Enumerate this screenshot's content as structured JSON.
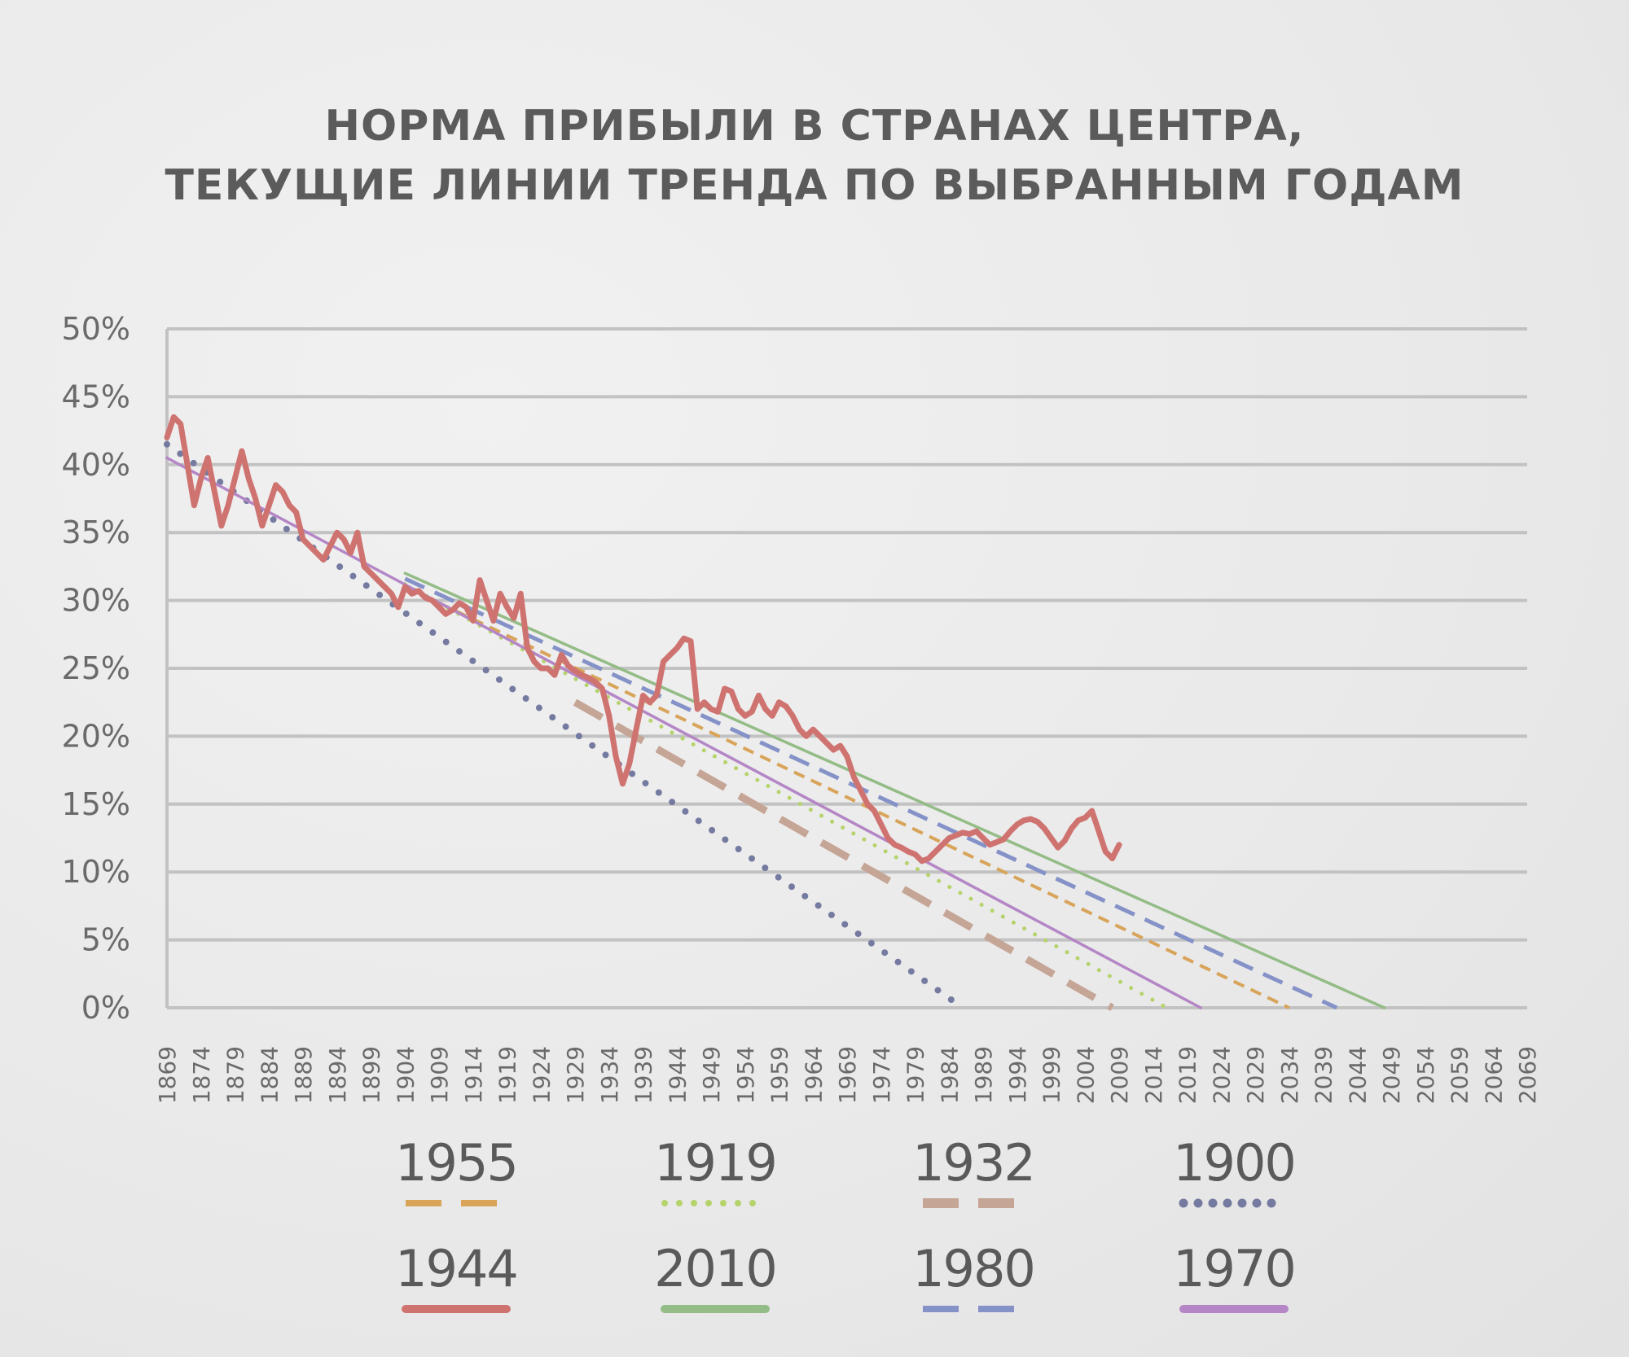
{
  "title": {
    "line1": "НОРМА ПРИБЫЛИ В СТРАНАХ ЦЕНТРА,",
    "line2": "ТЕКУЩИЕ ЛИНИИ ТРЕНДА ПО ВЫБРАННЫМ ГОДАМ"
  },
  "chart_data": {
    "type": "line",
    "title": "НОРМА ПРИБЫЛИ В СТРАНАХ ЦЕНТРА, ТЕКУЩИЕ ЛИНИИ ТРЕНДА ПО ВЫБРАННЫМ ГОДАМ",
    "xlabel": "",
    "ylabel": "",
    "xlim": [
      1869,
      2069
    ],
    "ylim": [
      0,
      50
    ],
    "grid": true,
    "legend_position": "bottom",
    "x_ticks": [
      1869,
      1874,
      1879,
      1884,
      1889,
      1894,
      1899,
      1904,
      1909,
      1914,
      1919,
      1924,
      1929,
      1934,
      1939,
      1944,
      1949,
      1954,
      1959,
      1964,
      1969,
      1974,
      1979,
      1984,
      1989,
      1994,
      1999,
      2004,
      2009,
      2014,
      2019,
      2024,
      2029,
      2034,
      2039,
      2044,
      2049,
      2054,
      2059,
      2064,
      2069
    ],
    "x_tick_labels": [
      "1869",
      "1874",
      "1879",
      "1884",
      "1889",
      "1894",
      "1899",
      "1904",
      "1909",
      "1914",
      "1919",
      "1924",
      "1929",
      "1934",
      "1939",
      "1944",
      "1949",
      "1954",
      "1959",
      "1964",
      "1969",
      "1974",
      "1979",
      "1984",
      "1989",
      "1994",
      "1999",
      "2004",
      "2009",
      "2014",
      "2019",
      "2024",
      "2029",
      "2034",
      "2039",
      "2044",
      "2049",
      "2054",
      "2059",
      "2064",
      "2069"
    ],
    "y_ticks": [
      0,
      5,
      10,
      15,
      20,
      25,
      30,
      35,
      40,
      45,
      50
    ],
    "y_tick_labels": [
      "0%",
      "5%",
      "10%",
      "15%",
      "20%",
      "25%",
      "30%",
      "35%",
      "40%",
      "45%",
      "50%"
    ],
    "series": [
      {
        "name": "1944",
        "color": "#cf7370",
        "style": "solid-thick",
        "x": [
          1869,
          1870,
          1871,
          1872,
          1873,
          1874,
          1875,
          1876,
          1877,
          1878,
          1879,
          1880,
          1881,
          1882,
          1883,
          1884,
          1885,
          1886,
          1887,
          1888,
          1889,
          1890,
          1891,
          1892,
          1893,
          1894,
          1895,
          1896,
          1897,
          1898,
          1899,
          1900,
          1901,
          1902,
          1903,
          1904,
          1905,
          1906,
          1907,
          1908,
          1909,
          1910,
          1911,
          1912,
          1913,
          1914,
          1915,
          1916,
          1917,
          1918,
          1919,
          1920,
          1921,
          1922,
          1923,
          1924,
          1925,
          1926,
          1927,
          1928,
          1929,
          1930,
          1931,
          1932,
          1933,
          1934,
          1935,
          1936,
          1937,
          1938,
          1939,
          1940,
          1941,
          1942,
          1943,
          1944,
          1945,
          1946,
          1947,
          1948,
          1949,
          1950,
          1951,
          1952,
          1953,
          1954,
          1955,
          1956,
          1957,
          1958,
          1959,
          1960,
          1961,
          1962,
          1963,
          1964,
          1965,
          1966,
          1967,
          1968,
          1969,
          1970,
          1971,
          1972,
          1973,
          1974,
          1975,
          1976,
          1977,
          1978,
          1979,
          1980,
          1981,
          1982,
          1983,
          1984,
          1985,
          1986,
          1987,
          1988,
          1989,
          1990,
          1991,
          1992,
          1993,
          1994,
          1995,
          1996,
          1997,
          1998,
          1999,
          2000,
          2001,
          2002,
          2003,
          2004,
          2005,
          2006,
          2007,
          2008,
          2009
        ],
        "values": [
          42.0,
          43.5,
          43.0,
          40.0,
          37.0,
          39.0,
          40.5,
          38.0,
          35.5,
          37.0,
          39.0,
          41.0,
          39.0,
          37.5,
          35.5,
          37.0,
          38.5,
          38.0,
          37.0,
          36.5,
          34.5,
          34.0,
          33.5,
          33.0,
          34.0,
          35.0,
          34.5,
          33.5,
          35.0,
          32.5,
          32.0,
          31.5,
          31.0,
          30.5,
          29.5,
          31.0,
          30.5,
          30.7,
          30.2,
          30.0,
          29.5,
          29.0,
          29.3,
          29.8,
          29.5,
          28.5,
          31.5,
          30.0,
          28.5,
          30.5,
          29.5,
          28.7,
          30.5,
          26.5,
          25.5,
          25.0,
          25.0,
          24.5,
          26.0,
          25.2,
          24.8,
          24.5,
          24.3,
          24.0,
          23.5,
          21.5,
          18.5,
          16.5,
          18.0,
          20.5,
          23.0,
          22.5,
          23.0,
          25.5,
          26.0,
          26.5,
          27.2,
          27.0,
          22.0,
          22.5,
          22.0,
          21.8,
          23.5,
          23.3,
          22.0,
          21.5,
          21.8,
          23.0,
          22.0,
          21.5,
          22.5,
          22.2,
          21.5,
          20.5,
          20.0,
          20.5,
          20.0,
          19.5,
          19.0,
          19.3,
          18.5,
          17.0,
          16.0,
          15.0,
          14.5,
          13.5,
          12.5,
          12.0,
          11.8,
          11.5,
          11.3,
          10.8,
          11.0,
          11.5,
          12.0,
          12.5,
          12.7,
          12.9,
          12.8,
          13.0,
          12.5,
          12.0,
          12.2,
          12.4,
          13.0,
          13.5,
          13.8,
          13.9,
          13.7,
          13.2,
          12.5,
          11.8,
          12.3,
          13.2,
          13.8,
          14.0,
          14.5,
          13.0,
          11.5,
          11.0,
          12.0
        ]
      },
      {
        "name": "1955",
        "color": "#d8a45a",
        "style": "short-dash",
        "x": [
          1904,
          2034
        ],
        "values": [
          31.0,
          0
        ]
      },
      {
        "name": "1919",
        "color": "#b5d36b",
        "style": "dotted",
        "x": [
          1904,
          2016
        ],
        "values": [
          31.2,
          0
        ]
      },
      {
        "name": "1932",
        "color": "#c5a595",
        "style": "long-dash",
        "x": [
          1929,
          2008
        ],
        "values": [
          22.5,
          0
        ]
      },
      {
        "name": "1900",
        "color": "#757ba0",
        "style": "dotted-round",
        "x": [
          1869,
          1986
        ],
        "values": [
          41.5,
          0
        ]
      },
      {
        "name": "2010",
        "color": "#93bc86",
        "style": "solid-thin",
        "x": [
          1904,
          2048
        ],
        "values": [
          32.0,
          0
        ]
      },
      {
        "name": "1980",
        "color": "#8592c8",
        "style": "dash",
        "x": [
          1904,
          2041
        ],
        "values": [
          31.6,
          0
        ]
      },
      {
        "name": "1970",
        "color": "#b486c6",
        "style": "solid-thin",
        "x": [
          1869,
          2021
        ],
        "values": [
          40.5,
          0
        ]
      }
    ]
  }
}
